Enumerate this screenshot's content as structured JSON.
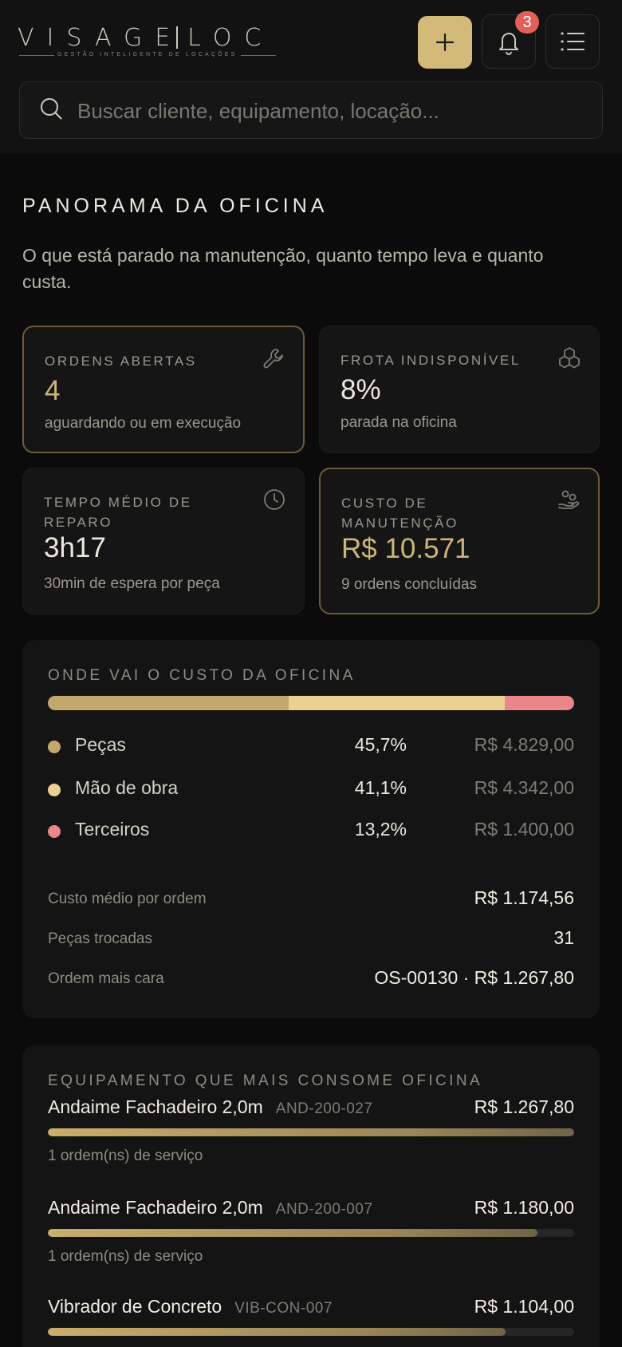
{
  "header": {
    "logo_left": "VISAGE",
    "logo_right": "LOC",
    "logo_tagline": "GESTÃO INTELIGENTE DE LOCAÇÕES",
    "notification_count": "3",
    "search_placeholder": "Buscar cliente, equipamento, locação..."
  },
  "page": {
    "title": "PANORAMA DA OFICINA",
    "subtitle": "O que está parado na manutenção, quanto tempo leva e quanto custa."
  },
  "kpis": [
    {
      "label": "ORDENS ABERTAS",
      "value": "4",
      "foot": "aguardando ou em execução",
      "icon": "wrench-icon"
    },
    {
      "label": "FROTA INDISPONÍVEL",
      "value": "8%",
      "foot": "parada na oficina",
      "icon": "boxes-icon"
    },
    {
      "label": "TEMPO MÉDIO DE REPARO",
      "value": "3h17",
      "foot": "30min de espera por peça",
      "icon": "clock-icon"
    },
    {
      "label": "CUSTO DE MANUTENÇÃO",
      "value": "R$ 10.571",
      "foot": "9 ordens concluídas",
      "icon": "hand-coins-icon"
    }
  ],
  "cost_breakdown": {
    "title": "ONDE VAI O CUSTO DA OFICINA",
    "items": [
      {
        "name": "Peças",
        "pct": "45,7%",
        "value": "R$ 4.829,00",
        "share": 45.7,
        "color": "#c2a86c"
      },
      {
        "name": "Mão de obra",
        "pct": "41,1%",
        "value": "R$ 4.342,00",
        "share": 41.1,
        "color": "#ecd08f"
      },
      {
        "name": "Terceiros",
        "pct": "13,2%",
        "value": "R$ 1.400,00",
        "share": 13.2,
        "color": "#e8868a"
      }
    ],
    "stats": [
      {
        "label": "Custo médio por ordem",
        "value": "R$ 1.174,56"
      },
      {
        "label": "Peças trocadas",
        "value": "31"
      },
      {
        "label": "Ordem mais cara",
        "value": "OS-00130 · R$ 1.267,80"
      }
    ]
  },
  "equipment": {
    "title": "EQUIPAMENTO QUE MAIS CONSOME OFICINA",
    "items": [
      {
        "name": "Andaime Fachadeiro 2,0m",
        "code": "AND-200-027",
        "value": "R$ 1.267,80",
        "fill": 1.0,
        "foot": "1 ordem(ns) de serviço"
      },
      {
        "name": "Andaime Fachadeiro 2,0m",
        "code": "AND-200-007",
        "value": "R$ 1.180,00",
        "fill": 0.93,
        "foot": "1 ordem(ns) de serviço"
      },
      {
        "name": "Vibrador de Concreto",
        "code": "VIB-CON-007",
        "value": "R$ 1.104,00",
        "fill": 0.87,
        "foot": ""
      }
    ]
  }
}
